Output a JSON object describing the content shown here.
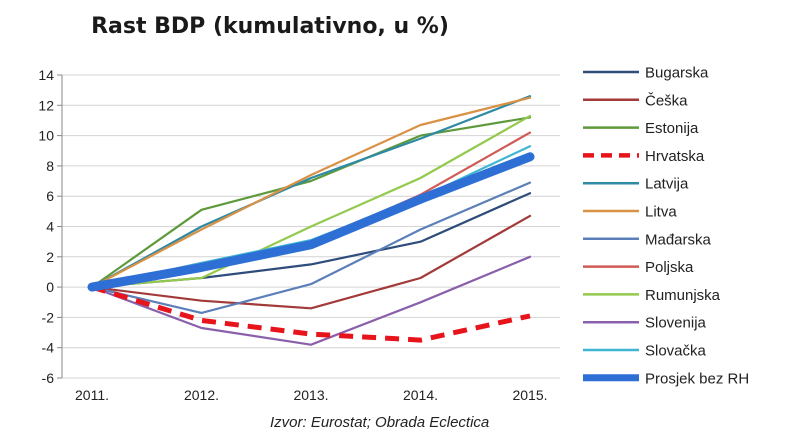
{
  "chart_data": {
    "type": "line",
    "title": "Rast BDP (kumulativno, u %)",
    "source": "Izvor: Eurostat; Obrada Eclectica",
    "x": [
      "2011.",
      "2012.",
      "2013.",
      "2014.",
      "2015."
    ],
    "ylim": [
      -6,
      14
    ],
    "yticks": [
      -6,
      -4,
      -2,
      0,
      2,
      4,
      6,
      8,
      10,
      12,
      14
    ],
    "grid": true,
    "legend_position": "right",
    "series": [
      {
        "name": "Bugarska",
        "color": "#2e4d7a",
        "style": "solid",
        "values": [
          0,
          0.6,
          1.5,
          3.0,
          6.2
        ]
      },
      {
        "name": "Češka",
        "color": "#a33a3a",
        "style": "solid",
        "values": [
          0,
          -0.9,
          -1.4,
          0.6,
          4.7
        ]
      },
      {
        "name": "Estonija",
        "color": "#5e9a3c",
        "style": "solid",
        "values": [
          0,
          5.1,
          7.0,
          10.0,
          11.2
        ]
      },
      {
        "name": "Hrvatska",
        "color": "#e8141c",
        "style": "dashed",
        "values": [
          0,
          -2.2,
          -3.1,
          -3.5,
          -1.9
        ]
      },
      {
        "name": "Latvija",
        "color": "#2f8aa3",
        "style": "solid",
        "values": [
          0,
          4.0,
          7.2,
          9.8,
          12.6
        ]
      },
      {
        "name": "Litva",
        "color": "#d99146",
        "style": "solid",
        "values": [
          0,
          3.8,
          7.4,
          10.7,
          12.5
        ]
      },
      {
        "name": "Mađarska",
        "color": "#5b7fb8",
        "style": "solid",
        "values": [
          0,
          -1.7,
          0.2,
          3.8,
          6.9
        ]
      },
      {
        "name": "Poljska",
        "color": "#d05a55",
        "style": "solid",
        "values": [
          0,
          1.6,
          2.9,
          6.1,
          10.2
        ]
      },
      {
        "name": "Rumunjska",
        "color": "#93c94c",
        "style": "solid",
        "values": [
          0,
          0.6,
          4.0,
          7.2,
          11.3
        ]
      },
      {
        "name": "Slovenija",
        "color": "#8a5fab",
        "style": "solid",
        "values": [
          0,
          -2.7,
          -3.8,
          -1.0,
          2.0
        ]
      },
      {
        "name": "Slovačka",
        "color": "#3fb6d2",
        "style": "solid",
        "values": [
          0,
          1.6,
          3.1,
          5.9,
          9.3
        ]
      },
      {
        "name": "Prosjek bez RH",
        "color": "#2e6fd6",
        "style": "thick",
        "values": [
          0,
          1.3,
          2.8,
          5.8,
          8.6
        ]
      }
    ]
  }
}
